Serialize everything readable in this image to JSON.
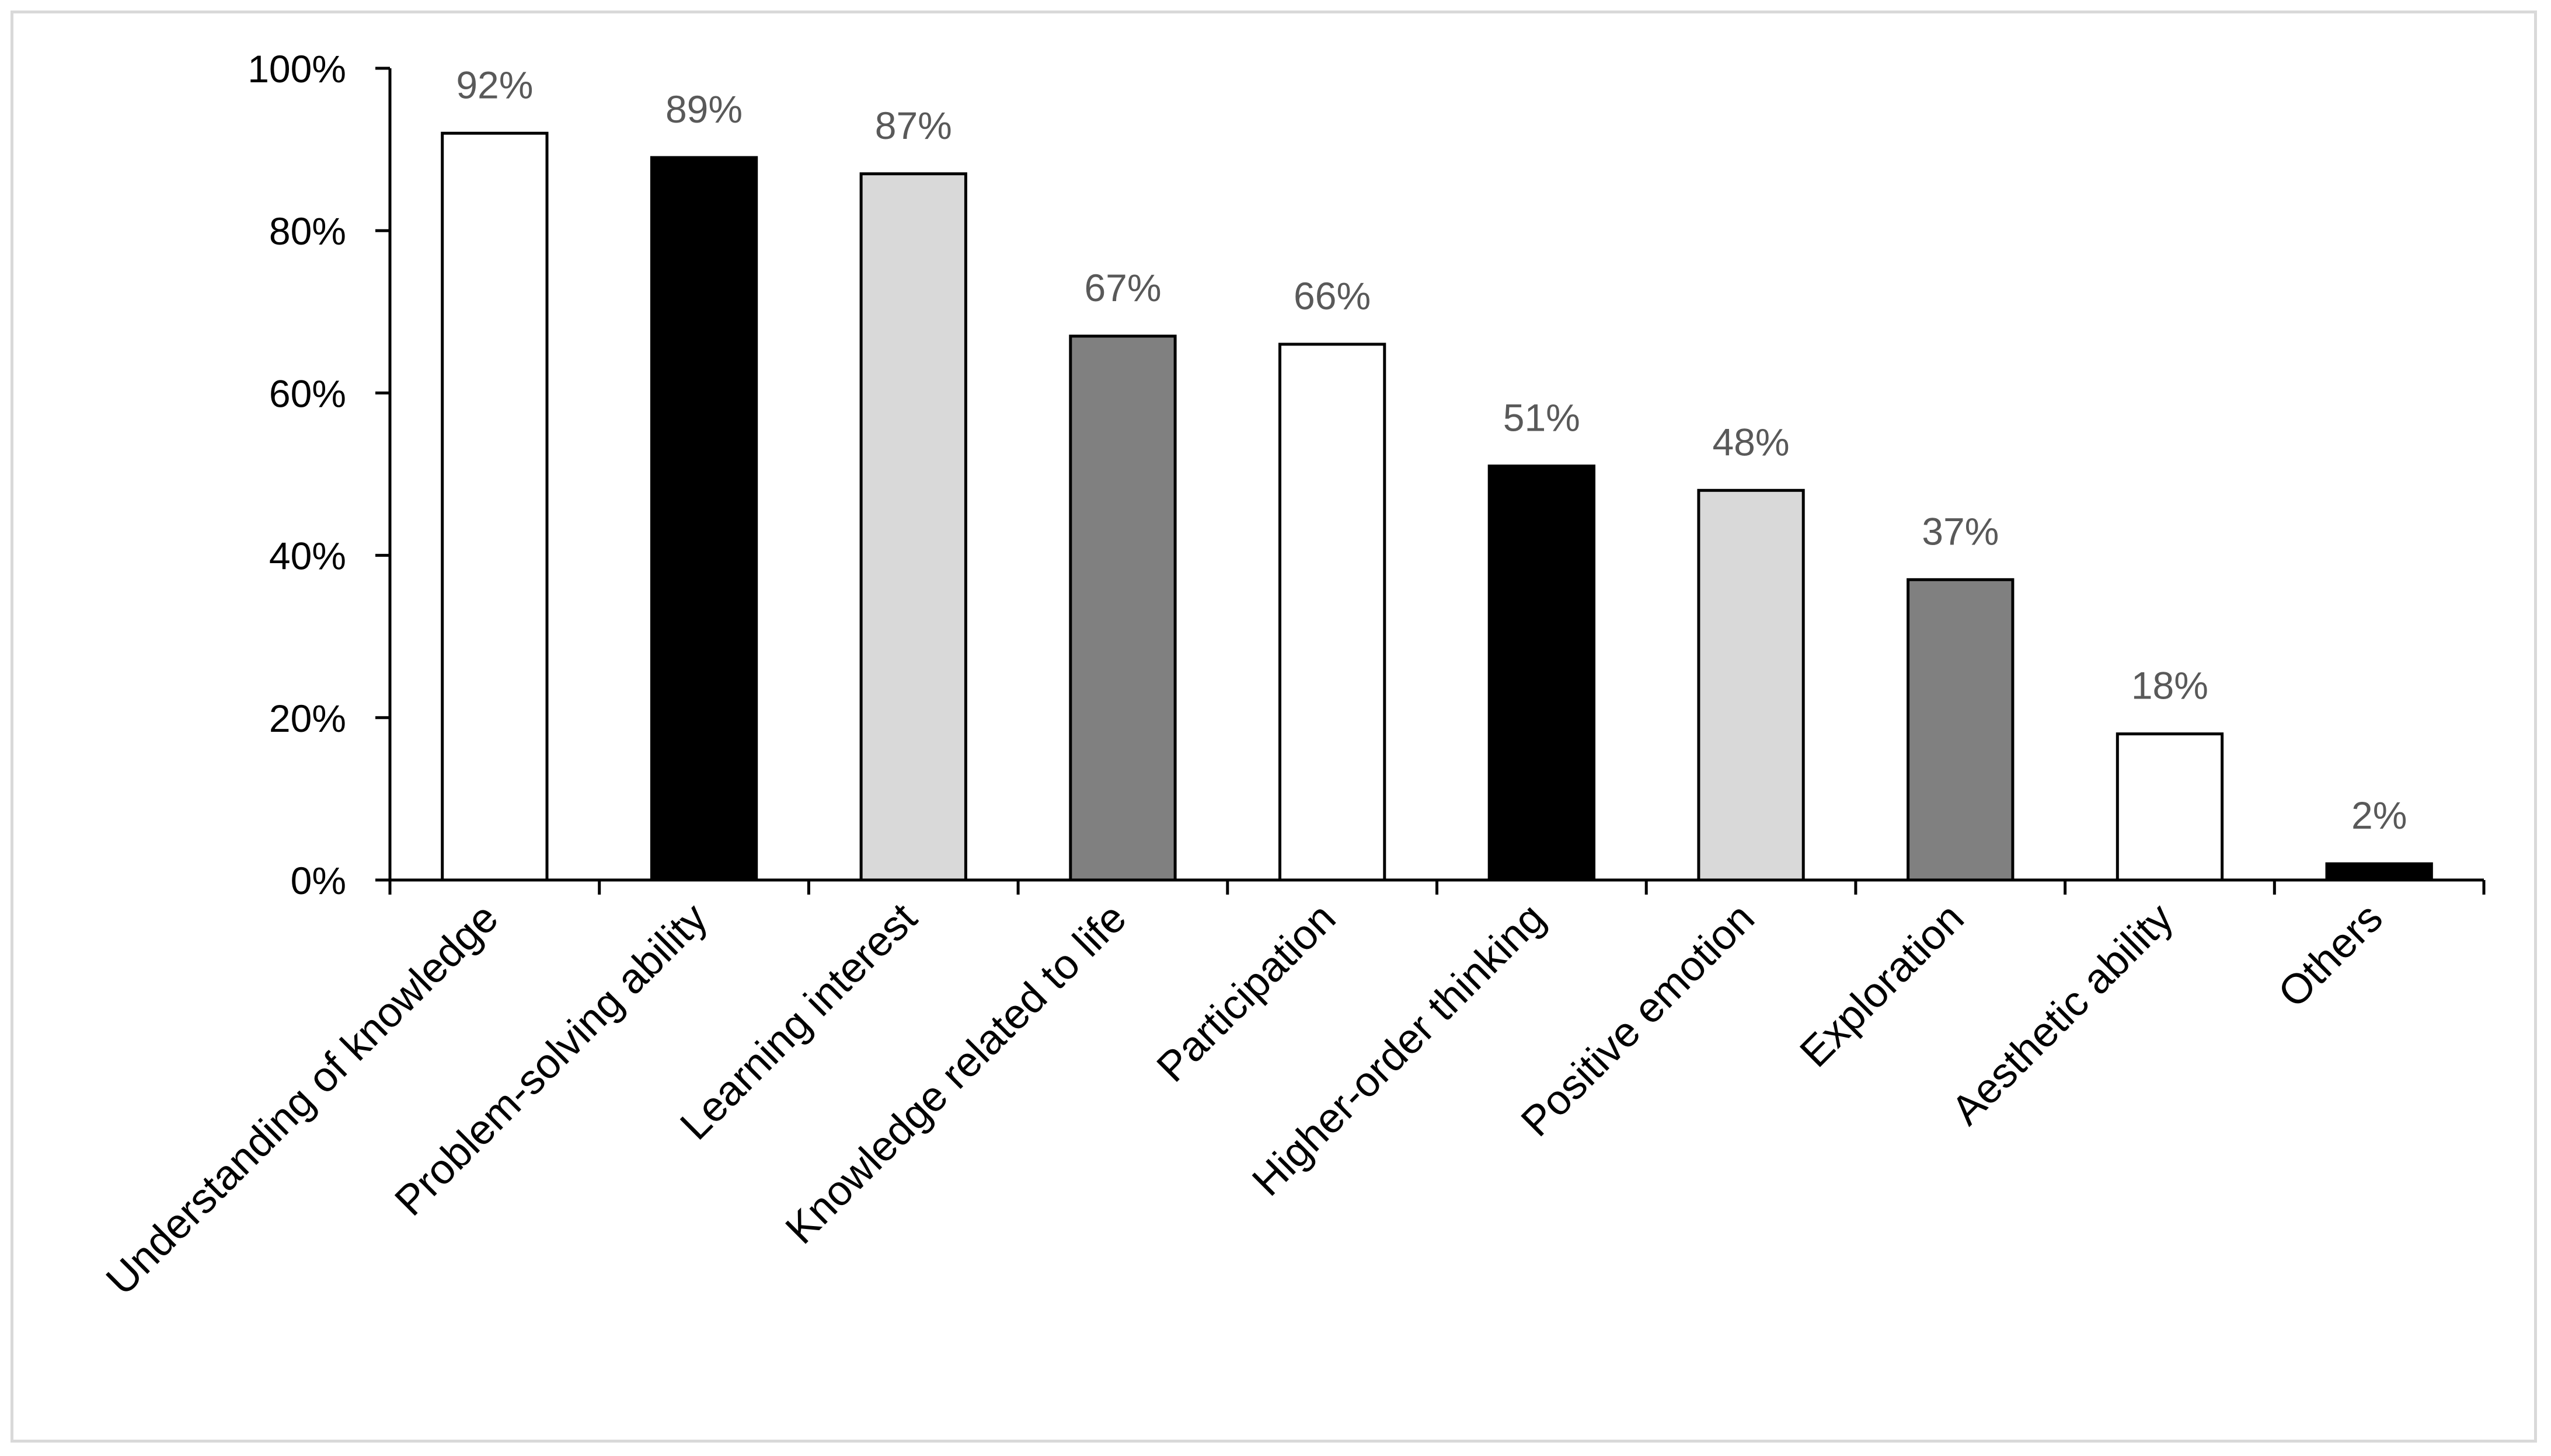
{
  "chart_data": {
    "type": "bar",
    "title": "",
    "xlabel": "",
    "ylabel": "",
    "categories": [
      "Understanding of knowledge",
      "Problem-solving ability",
      "Learning interest",
      "Knowledge related to life",
      "Participation",
      "Higher-order thinking",
      "Positive emotion",
      "Exploration",
      "Aesthetic ability",
      "Others"
    ],
    "values": [
      92,
      89,
      87,
      67,
      66,
      51,
      48,
      37,
      18,
      2
    ],
    "data_labels": [
      "92%",
      "89%",
      "87%",
      "67%",
      "66%",
      "51%",
      "48%",
      "37%",
      "18%",
      "2%"
    ],
    "bar_colors": [
      "#ffffff",
      "#000000",
      "#d9d9d9",
      "#808080",
      "#ffffff",
      "#000000",
      "#d9d9d9",
      "#808080",
      "#ffffff",
      "#000000"
    ],
    "bar_outline": "#000000",
    "ylim": [
      0,
      100
    ],
    "yticks": [
      0,
      20,
      40,
      60,
      80,
      100
    ],
    "ytick_labels": [
      "0%",
      "20%",
      "40%",
      "60%",
      "80%",
      "100%"
    ],
    "grid": false,
    "legend": "none"
  },
  "colors": {
    "axis": "#000000",
    "data_label": "#595959",
    "frame_border": "#d9d9d9",
    "background": "#ffffff"
  }
}
